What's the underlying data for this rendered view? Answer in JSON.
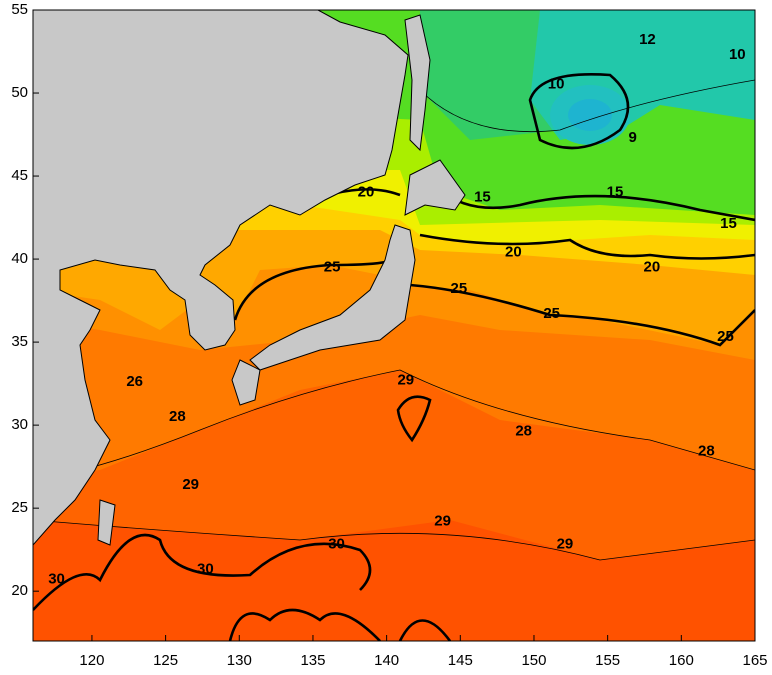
{
  "map": {
    "xlim": [
      116,
      165
    ],
    "ylim": [
      17,
      55
    ],
    "xticks": [
      120,
      125,
      130,
      135,
      140,
      145,
      150,
      155,
      160,
      165
    ],
    "yticks": [
      20,
      25,
      30,
      35,
      40,
      45,
      50,
      55
    ],
    "contour_labels": [
      {
        "value": 12,
        "lon": 157.7,
        "lat": 53.2
      },
      {
        "value": 10,
        "lon": 163.8,
        "lat": 52.3
      },
      {
        "value": 10,
        "lon": 151.5,
        "lat": 50.5
      },
      {
        "value": 9,
        "lon": 156.7,
        "lat": 47.3
      },
      {
        "value": 15,
        "lon": 146.5,
        "lat": 43.7
      },
      {
        "value": 15,
        "lon": 155.5,
        "lat": 44.0
      },
      {
        "value": 15,
        "lon": 163.2,
        "lat": 42.1
      },
      {
        "value": 20,
        "lon": 138.6,
        "lat": 44.0
      },
      {
        "value": 20,
        "lon": 148.6,
        "lat": 40.4
      },
      {
        "value": 20,
        "lon": 158.0,
        "lat": 39.5
      },
      {
        "value": 25,
        "lon": 136.3,
        "lat": 39.5
      },
      {
        "value": 25,
        "lon": 144.9,
        "lat": 38.2
      },
      {
        "value": 25,
        "lon": 151.2,
        "lat": 36.7
      },
      {
        "value": 25,
        "lon": 163.0,
        "lat": 35.3
      },
      {
        "value": 26,
        "lon": 122.9,
        "lat": 32.6
      },
      {
        "value": 28,
        "lon": 125.8,
        "lat": 30.5
      },
      {
        "value": 29,
        "lon": 141.3,
        "lat": 32.7
      },
      {
        "value": 28,
        "lon": 149.3,
        "lat": 29.6
      },
      {
        "value": 28,
        "lon": 161.7,
        "lat": 28.4
      },
      {
        "value": 29,
        "lon": 126.7,
        "lat": 26.4
      },
      {
        "value": 29,
        "lon": 143.8,
        "lat": 24.2
      },
      {
        "value": 29,
        "lon": 152.1,
        "lat": 22.8
      },
      {
        "value": 30,
        "lon": 136.6,
        "lat": 22.8
      },
      {
        "value": 30,
        "lon": 127.7,
        "lat": 21.3
      },
      {
        "value": 30,
        "lon": 117.6,
        "lat": 20.7
      }
    ]
  }
}
